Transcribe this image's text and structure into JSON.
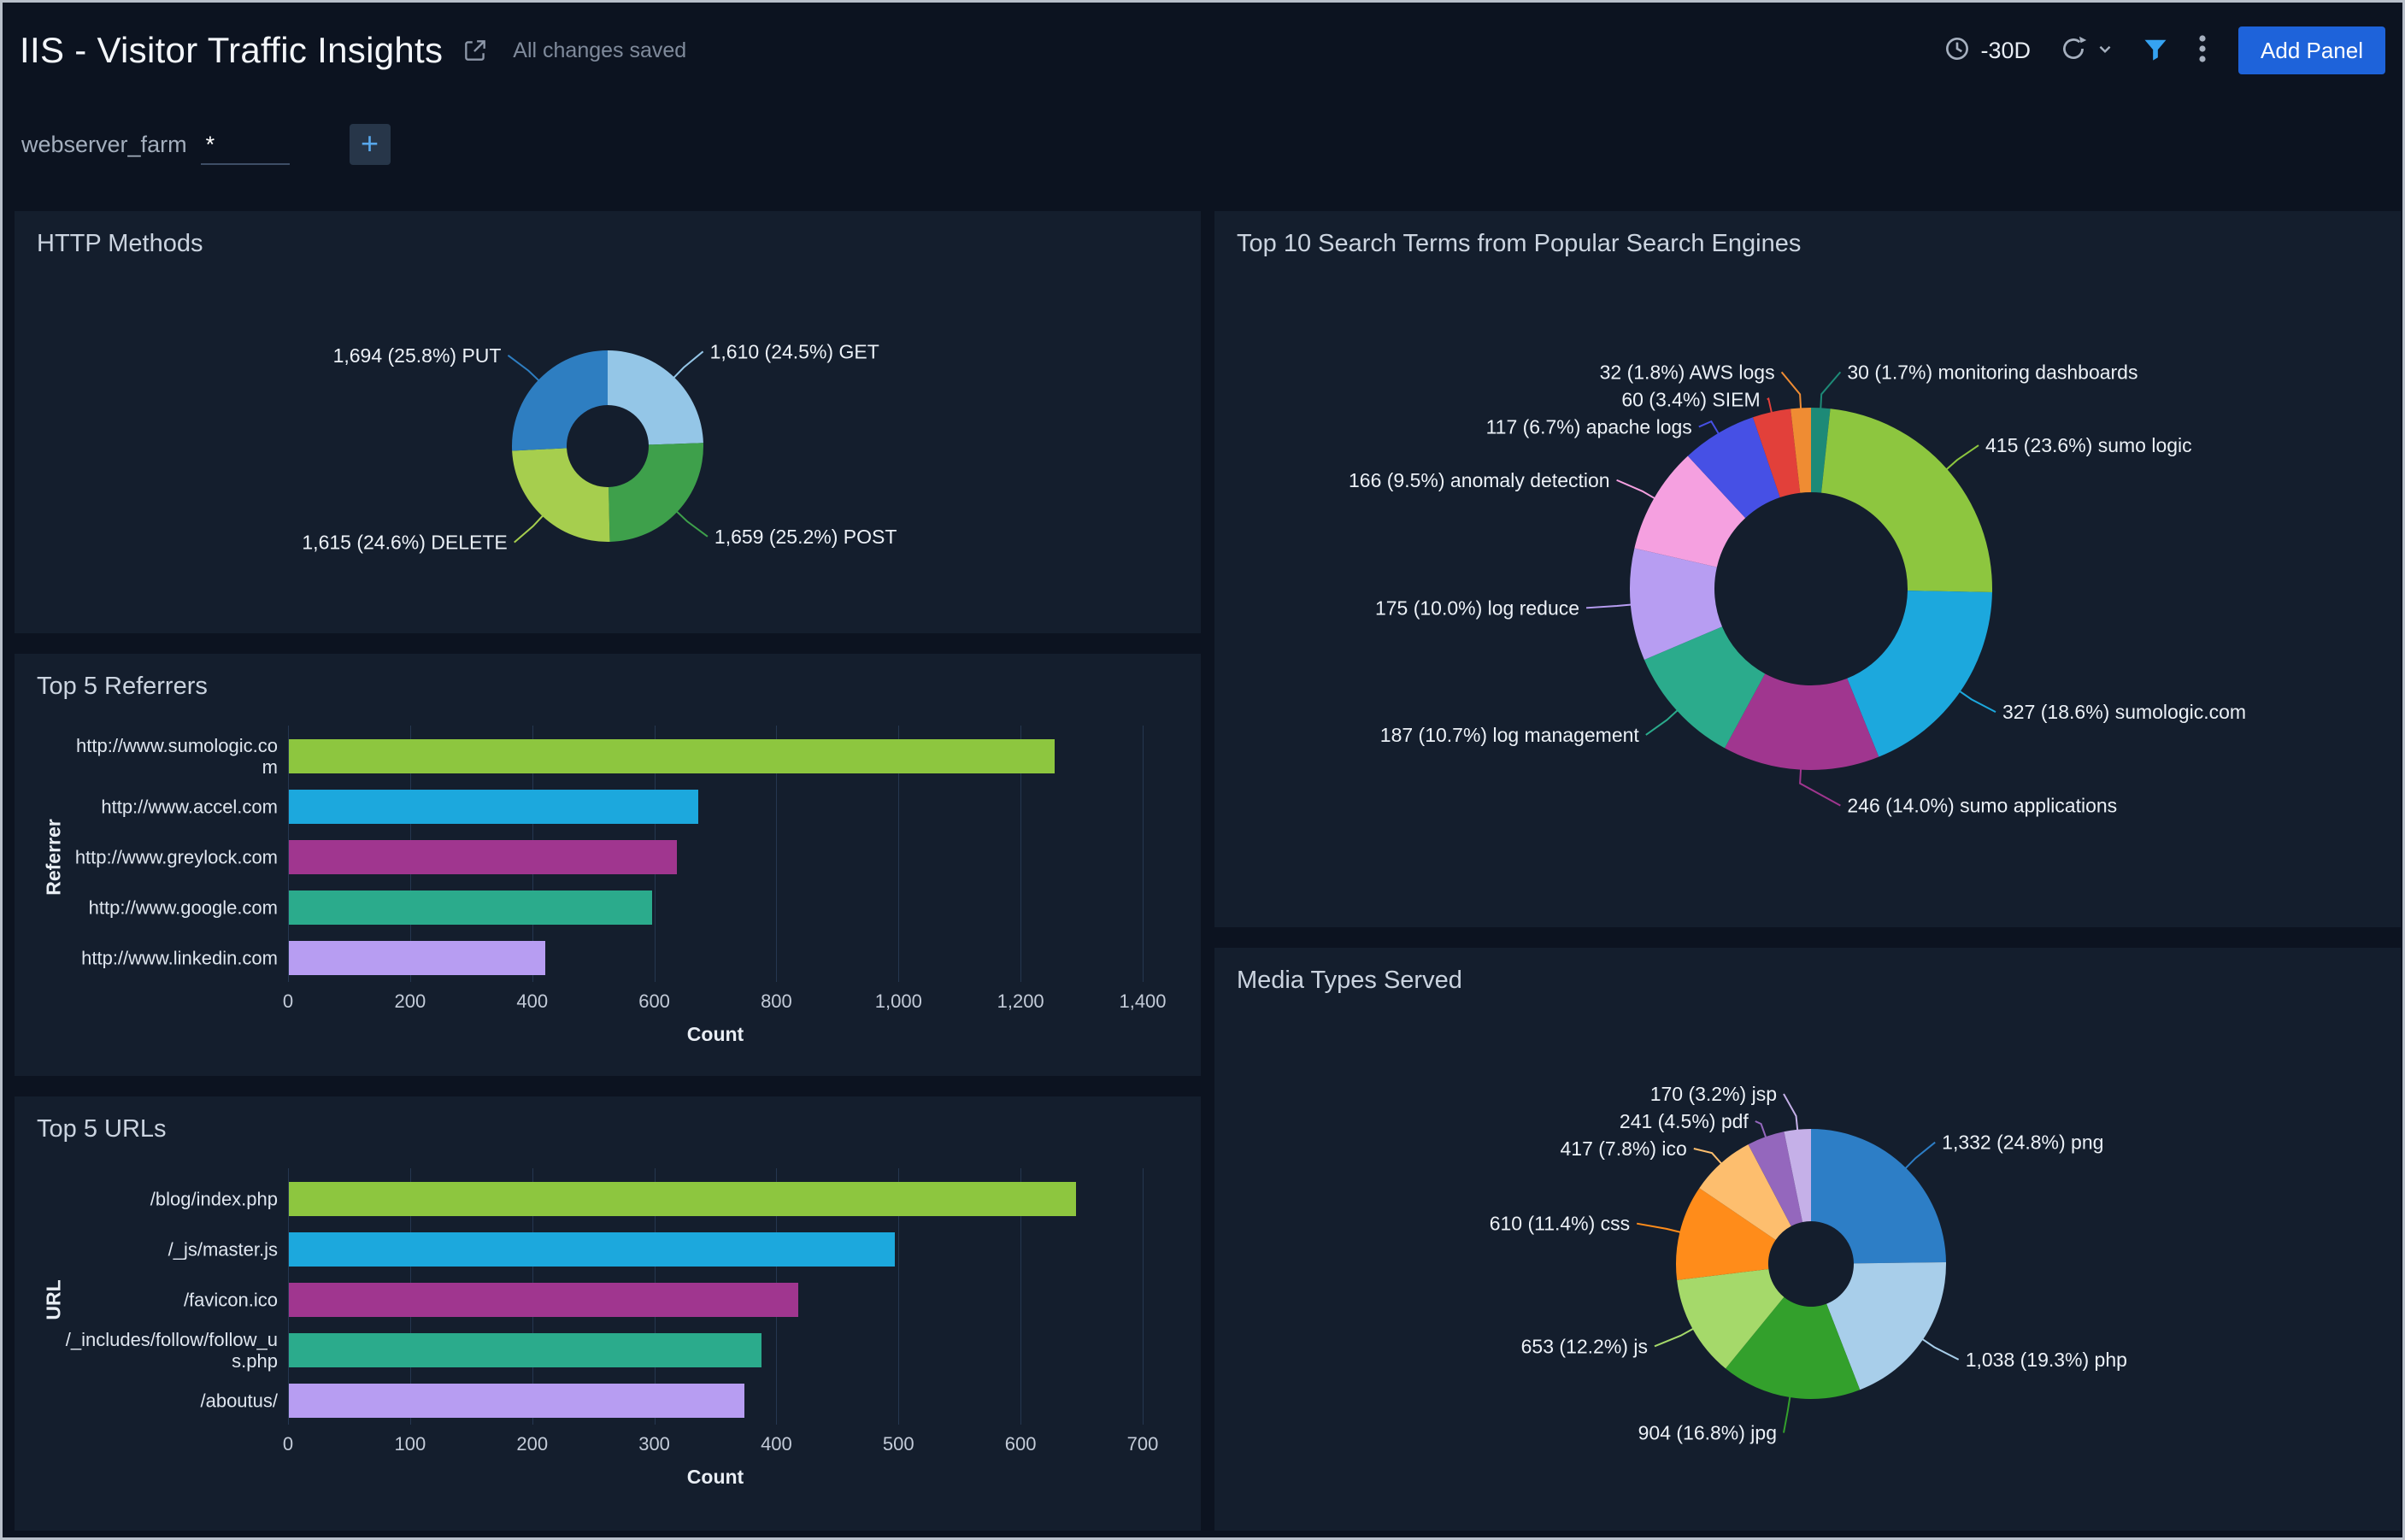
{
  "header": {
    "title": "IIS - Visitor Traffic Insights",
    "saved_status": "All changes saved",
    "time_range": "-30D",
    "add_panel_label": "Add Panel"
  },
  "filter_bar": {
    "filter_name": "webserver_farm",
    "filter_value": "*"
  },
  "chart_data": [
    {
      "id": "http-methods",
      "type": "pie",
      "donut": true,
      "title": "HTTP Methods",
      "start_angle": "top",
      "direction": "clockwise",
      "slices": [
        {
          "name": "GET",
          "value": 1610,
          "pct": 24.5,
          "label": "1,610 (24.5%) GET",
          "color": "#94c6e7"
        },
        {
          "name": "POST",
          "value": 1659,
          "pct": 25.2,
          "label": "1,659 (25.2%) POST",
          "color": "#3ea04b"
        },
        {
          "name": "DELETE",
          "value": 1615,
          "pct": 24.6,
          "label": "1,615 (24.6%) DELETE",
          "color": "#a6ce4e"
        },
        {
          "name": "PUT",
          "value": 1694,
          "pct": 25.8,
          "label": "1,694 (25.8%) PUT",
          "color": "#2e7ec1"
        }
      ]
    },
    {
      "id": "search-terms",
      "type": "pie",
      "donut": true,
      "title": "Top 10 Search Terms from Popular Search Engines",
      "start_angle": "top",
      "direction": "clockwise",
      "slices": [
        {
          "name": "monitoring dashboards",
          "value": 30,
          "pct": 1.7,
          "label": "30 (1.7%) monitoring dashboards",
          "color": "#1d8a77"
        },
        {
          "name": "sumo logic",
          "value": 415,
          "pct": 23.6,
          "label": "415 (23.6%) sumo logic",
          "color": "#8dc63f"
        },
        {
          "name": "sumologic.com",
          "value": 327,
          "pct": 18.6,
          "label": "327 (18.6%) sumologic.com",
          "color": "#1ca8dd"
        },
        {
          "name": "sumo applications",
          "value": 246,
          "pct": 14.0,
          "label": "246 (14.0%) sumo applications",
          "color": "#a0368f",
          "side": "right"
        },
        {
          "name": "log management",
          "value": 187,
          "pct": 10.7,
          "label": "187 (10.7%) log management",
          "color": "#2bab8c"
        },
        {
          "name": "log reduce",
          "value": 175,
          "pct": 10.0,
          "label": "175 (10.0%) log reduce",
          "color": "#b79df2"
        },
        {
          "name": "anomaly detection",
          "value": 166,
          "pct": 9.5,
          "label": "166 (9.5%) anomaly detection",
          "color": "#f5a0e0"
        },
        {
          "name": "apache logs",
          "value": 117,
          "pct": 6.7,
          "label": "117 (6.7%) apache logs",
          "color": "#4650e5"
        },
        {
          "name": "SIEM",
          "value": 60,
          "pct": 3.4,
          "label": "60 (3.4%) SIEM",
          "color": "#e2403a"
        },
        {
          "name": "AWS logs",
          "value": 32,
          "pct": 1.8,
          "label": "32 (1.8%) AWS logs",
          "color": "#ef8c33"
        }
      ]
    },
    {
      "id": "top-referrers",
      "type": "bar",
      "orientation": "horizontal",
      "title": "Top 5 Referrers",
      "categories": [
        "http://www.sumologic.com",
        "http://www.accel.com",
        "http://www.greylock.com",
        "http://www.google.com",
        "http://www.linkedin.com"
      ],
      "values": [
        1255,
        670,
        635,
        595,
        420
      ],
      "bar_colors": [
        "#8dc63f",
        "#1ca8dd",
        "#a0368f",
        "#2bab8c",
        "#b79df2"
      ],
      "xlabel": "Count",
      "ylabel": "Referrer",
      "xlim": [
        0,
        1400
      ],
      "xticks": [
        0,
        200,
        400,
        600,
        800,
        1000,
        1200,
        1400
      ],
      "grid": true
    },
    {
      "id": "top-urls",
      "type": "bar",
      "orientation": "horizontal",
      "title": "Top 5 URLs",
      "categories": [
        "/blog/index.php",
        "/_js/master.js",
        "/favicon.ico",
        "/_includes/follow/follow_us.php",
        "/aboutus/"
      ],
      "values": [
        645,
        496,
        417,
        387,
        373
      ],
      "bar_colors": [
        "#8dc63f",
        "#1ca8dd",
        "#a0368f",
        "#2bab8c",
        "#b79df2"
      ],
      "xlabel": "Count",
      "ylabel": "URL",
      "xlim": [
        0,
        700
      ],
      "xticks": [
        0,
        100,
        200,
        300,
        400,
        500,
        600,
        700
      ],
      "grid": true
    },
    {
      "id": "media-types",
      "type": "pie",
      "donut": true,
      "title": "Media Types Served",
      "start_angle": "top",
      "direction": "clockwise",
      "slices": [
        {
          "name": "png",
          "value": 1332,
          "pct": 24.8,
          "label": "1,332 (24.8%) png",
          "color": "#2d7ec6"
        },
        {
          "name": "php",
          "value": 1038,
          "pct": 19.3,
          "label": "1,038 (19.3%) php",
          "color": "#a8ceea"
        },
        {
          "name": "jpg",
          "value": 904,
          "pct": 16.8,
          "label": "904 (16.8%) jpg",
          "color": "#33a02c"
        },
        {
          "name": "js",
          "value": 653,
          "pct": 12.2,
          "label": "653 (12.2%) js",
          "color": "#a5d96a"
        },
        {
          "name": "css",
          "value": 610,
          "pct": 11.4,
          "label": "610 (11.4%) css",
          "color": "#ff8c1a"
        },
        {
          "name": "ico",
          "value": 417,
          "pct": 7.8,
          "label": "417 (7.8%) ico",
          "color": "#fdbe6e"
        },
        {
          "name": "pdf",
          "value": 241,
          "pct": 4.5,
          "label": "241 (4.5%) pdf",
          "color": "#9467bd"
        },
        {
          "name": "jsp",
          "value": 170,
          "pct": 3.2,
          "label": "170 (3.2%) jsp",
          "color": "#c5b0e8"
        }
      ]
    }
  ]
}
